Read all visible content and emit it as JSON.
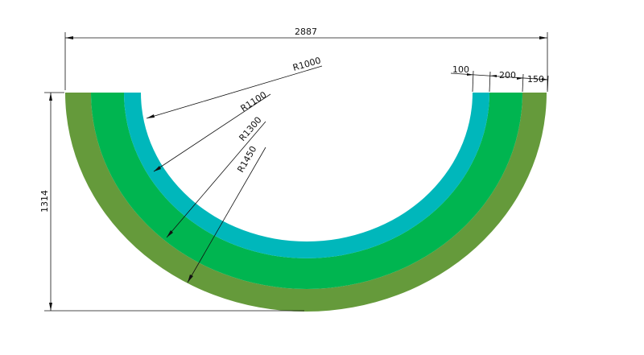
{
  "diagram": {
    "colors": {
      "outer_band": "#659a3b",
      "middle_band": "#00b550",
      "inner_band": "#00b7bb",
      "background": "#ffffff",
      "lines": "#111111"
    },
    "dimensions": {
      "total_width": "2887",
      "total_height": "1314",
      "widths": [
        "100",
        "200",
        "150"
      ],
      "radii": [
        "R1000",
        "R1100",
        "R1300",
        "R1450"
      ]
    }
  }
}
